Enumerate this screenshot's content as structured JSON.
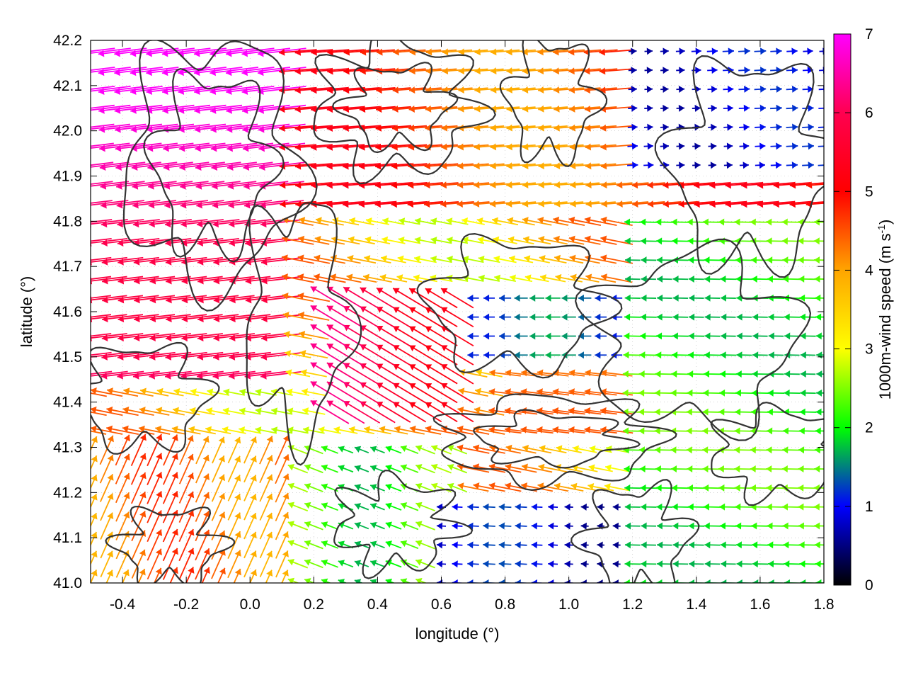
{
  "chart_data": {
    "type": "vector-field",
    "title": "",
    "xlabel": "longitude (°)",
    "ylabel": "latitude (°)",
    "xlim": [
      -0.5,
      1.8
    ],
    "ylim": [
      41.0,
      42.2
    ],
    "x_ticks": [
      "-0.4",
      "-0.2",
      "0.0",
      "0.2",
      "0.4",
      "0.6",
      "0.8",
      "1.0",
      "1.2",
      "1.4",
      "1.6",
      "1.8"
    ],
    "x_tick_values": [
      -0.4,
      -0.2,
      0.0,
      0.2,
      0.4,
      0.6,
      0.8,
      1.0,
      1.2,
      1.4,
      1.6,
      1.8
    ],
    "y_ticks": [
      "41.0",
      "41.1",
      "41.2",
      "41.3",
      "41.4",
      "41.5",
      "41.6",
      "41.7",
      "41.8",
      "41.9",
      "42.0",
      "42.1",
      "42.2"
    ],
    "y_tick_values": [
      41.0,
      41.1,
      41.2,
      41.3,
      41.4,
      41.5,
      41.6,
      41.7,
      41.8,
      41.9,
      42.0,
      42.1,
      42.2
    ],
    "grid": true,
    "colorbar": {
      "label": "1000m-wind speed (m s",
      "label_sup": "-1",
      "label_end": ")",
      "range": [
        0,
        7
      ],
      "ticks": [
        "0",
        "1",
        "2",
        "3",
        "4",
        "5",
        "6",
        "7"
      ],
      "tick_values": [
        0,
        1,
        2,
        3,
        4,
        5,
        6,
        7
      ],
      "colors": [
        "#000000",
        "#0000ff",
        "#00ff00",
        "#ffff00",
        "#ffa500",
        "#ff0000",
        "#ff00ff"
      ]
    },
    "contour_color": "#333333",
    "wind_regions": [
      {
        "lon": [
          -0.5,
          0.1
        ],
        "lat": [
          41.45,
          42.2
        ],
        "speed": 6.8,
        "direction": "east-to-west, slightly downward"
      },
      {
        "lon": [
          0.2,
          0.7
        ],
        "lat": [
          41.35,
          41.65
        ],
        "speed": 6.2,
        "direction": "southeast-to-northwest"
      },
      {
        "lon": [
          -0.5,
          0.1
        ],
        "lat": [
          41.0,
          41.3
        ],
        "speed": 4.5,
        "direction": "southwest-to-northeast"
      },
      {
        "lon": [
          0.1,
          0.7
        ],
        "lat": [
          41.0,
          41.3
        ],
        "speed": 2.2,
        "direction": "east-to-west"
      },
      {
        "lon": [
          0.6,
          1.2
        ],
        "lat": [
          41.0,
          41.2
        ],
        "speed": 1.0,
        "direction": "east-to-west"
      },
      {
        "lon": [
          0.7,
          1.2
        ],
        "lat": [
          41.5,
          41.65
        ],
        "speed": 1.4,
        "direction": "east-to-west"
      },
      {
        "lon": [
          1.2,
          1.8
        ],
        "lat": [
          41.9,
          42.2
        ],
        "speed": 1.0,
        "direction": "west-to-east"
      },
      {
        "lon": [
          1.2,
          1.8
        ],
        "lat": [
          41.0,
          41.8
        ],
        "speed": 2.2,
        "direction": "east-to-west"
      },
      {
        "lon": [
          0.8,
          1.4
        ],
        "lat": [
          41.3,
          41.6
        ],
        "speed": 4.2,
        "direction": "east-to-west"
      },
      {
        "lon": [
          0.2,
          1.0
        ],
        "lat": [
          41.8,
          42.2
        ],
        "speed": 4.5,
        "direction": "east-to-west"
      }
    ]
  }
}
